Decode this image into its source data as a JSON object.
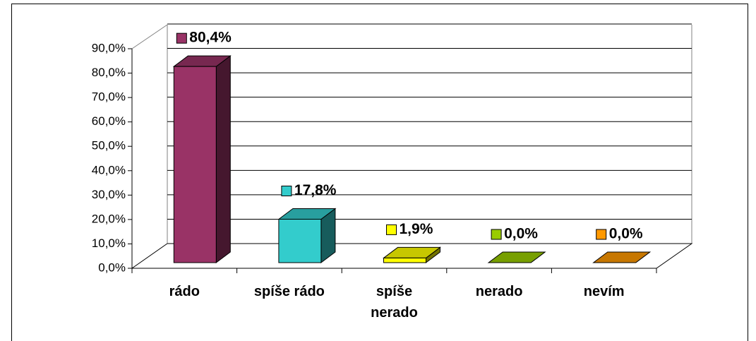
{
  "chart_data": {
    "type": "bar3d",
    "categories": [
      "rádo",
      "spíše rádo",
      "spíše nerado",
      "nerado",
      "nevím"
    ],
    "values": [
      80.4,
      17.8,
      1.9,
      0.0,
      0.0
    ],
    "value_labels": [
      "80,4%",
      "17,8%",
      "1,9%",
      "0,0%",
      "0,0%"
    ],
    "colors": [
      "#993366",
      "#33cccc",
      "#ffff00",
      "#99cc00",
      "#ff9900"
    ],
    "ylim": [
      0,
      90
    ],
    "yticks": [
      {
        "value": 0,
        "label": "0,0%"
      },
      {
        "value": 10,
        "label": "10,0%"
      },
      {
        "value": 20,
        "label": "20,0%"
      },
      {
        "value": 30,
        "label": "30,0%"
      },
      {
        "value": 40,
        "label": "40,0%"
      },
      {
        "value": 50,
        "label": "50,0%"
      },
      {
        "value": 60,
        "label": "60,0%"
      },
      {
        "value": 70,
        "label": "70,0%"
      },
      {
        "value": 80,
        "label": "80,0%"
      },
      {
        "value": 90,
        "label": "90,0%"
      }
    ],
    "grid": true
  }
}
